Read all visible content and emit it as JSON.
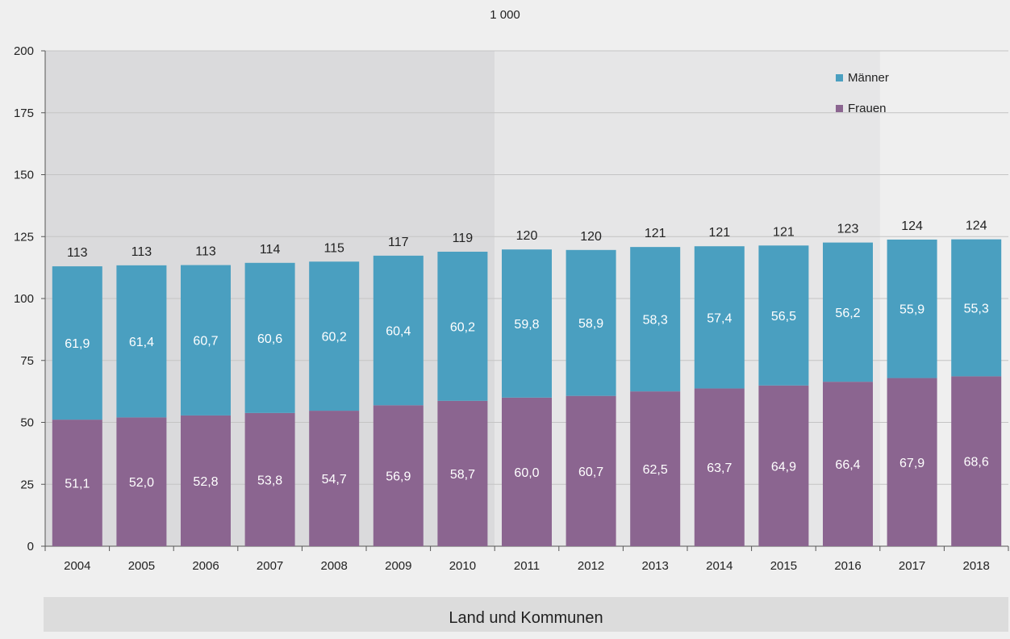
{
  "unit_label": "1 000",
  "footer_label": "Land und Kommunen",
  "colors": {
    "maenner": "#4a9fc0",
    "frauen": "#8b6590",
    "shade_dark": "#dadadc",
    "shade_light": "#e6e6e7"
  },
  "chart_data": {
    "type": "bar",
    "stacked": true,
    "categories": [
      "2004",
      "2005",
      "2006",
      "2007",
      "2008",
      "2009",
      "2010",
      "2011",
      "2012",
      "2013",
      "2014",
      "2015",
      "2016",
      "2017",
      "2018"
    ],
    "series": [
      {
        "name": "Frauen",
        "color": "#8b6590",
        "values": [
          51.1,
          52.0,
          52.8,
          53.8,
          54.7,
          56.9,
          58.7,
          60.0,
          60.7,
          62.5,
          63.7,
          64.9,
          66.4,
          67.9,
          68.6
        ],
        "labels": [
          "51,1",
          "52,0",
          "52,8",
          "53,8",
          "54,7",
          "56,9",
          "58,7",
          "60,0",
          "60,7",
          "62,5",
          "63,7",
          "64,9",
          "66,4",
          "67,9",
          "68,6"
        ]
      },
      {
        "name": "Männer",
        "color": "#4a9fc0",
        "values": [
          61.9,
          61.4,
          60.7,
          60.6,
          60.2,
          60.4,
          60.2,
          59.8,
          58.9,
          58.3,
          57.4,
          56.5,
          56.2,
          55.9,
          55.3
        ],
        "labels": [
          "61,9",
          "61,4",
          "60,7",
          "60,6",
          "60,2",
          "60,4",
          "60,2",
          "59,8",
          "58,9",
          "58,3",
          "57,4",
          "56,5",
          "56,2",
          "55,9",
          "55,3"
        ]
      }
    ],
    "totals": [
      "113",
      "113",
      "113",
      "114",
      "115",
      "117",
      "119",
      "120",
      "120",
      "121",
      "121",
      "121",
      "123",
      "124",
      "124"
    ],
    "ylim": [
      0,
      200
    ],
    "yticks": [
      0,
      25,
      50,
      75,
      100,
      125,
      150,
      175,
      200
    ],
    "grid": true,
    "legend_position": "top-right",
    "shaded_ranges": [
      {
        "from": "2004",
        "to": "2010",
        "shade": "dark"
      },
      {
        "from": "2011",
        "to": "2016",
        "shade": "light"
      }
    ]
  }
}
